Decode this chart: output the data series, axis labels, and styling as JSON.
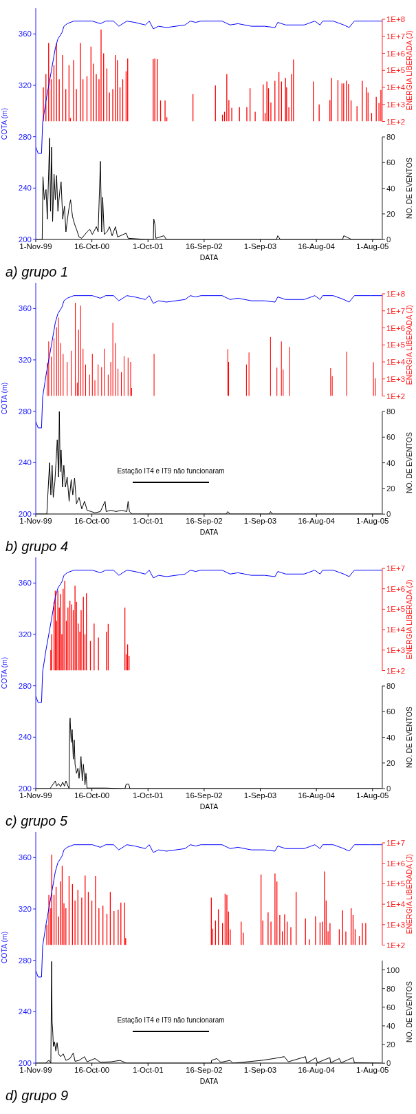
{
  "chart_data": [
    {
      "type": "line",
      "title": "a) grupo 1",
      "xlabel": "DATA",
      "ylabel": "COTA (m)",
      "y2label": "ENERGIA LIBERADA (J)",
      "y3label": "NO. DE EVENTOS",
      "log": "y2",
      "xlim": [
        "1999-11-01",
        "2005-10-01"
      ],
      "xticks": [
        {
          "value": "1999-11-01",
          "label": "1-Nov-99"
        },
        {
          "value": "2000-10-16",
          "label": "16-Oct-00"
        },
        {
          "value": "2001-10-01",
          "label": "1-Oct-01"
        },
        {
          "value": "2002-09-16",
          "label": "16-Sep-02"
        },
        {
          "value": "2003-09-01",
          "label": "1-Sep-03"
        },
        {
          "value": "2004-08-16",
          "label": "16-Aug-04"
        },
        {
          "value": "2005-08-01",
          "label": "1-Aug-05"
        }
      ],
      "ylim": [
        200,
        380
      ],
      "yticks": [
        200,
        240,
        280,
        320,
        360
      ],
      "y2lim": [
        100,
        100000000
      ],
      "y2ticks": [
        {
          "value": 100,
          "label": "1E+2"
        },
        {
          "value": 1000,
          "label": "1E+3"
        },
        {
          "value": 10000,
          "label": "1E+4"
        },
        {
          "value": 100000,
          "label": "1E+5"
        },
        {
          "value": 1000000,
          "label": "1E+6"
        },
        {
          "value": 10000000,
          "label": "1E+7"
        },
        {
          "value": 100000000,
          "label": "1E+8"
        }
      ],
      "y3lim": [
        0,
        80
      ],
      "y3ticks": [
        0,
        20,
        40,
        60,
        80
      ],
      "series": [
        {
          "type": "line",
          "color": "#0000ff",
          "x": [
            "1999-11-01",
            "1999-11-16",
            "1999-12-07",
            "1999-12-14",
            "2000-01-04",
            "2000-02-06",
            "2000-03-02",
            "2000-03-18",
            "2000-04-12",
            "2000-04-25",
            "2000-05-15",
            "2000-06-25",
            "2000-10-19",
            "2000-12-08",
            "2001-01-10",
            "2001-02-28",
            "2001-04-02",
            "2001-05-22",
            "2001-07-10",
            "2001-09-14",
            "2001-10-09",
            "2001-11-03",
            "2001-12-06",
            "2002-01-24",
            "2002-05-20",
            "2002-06-22",
            "2002-07-25",
            "2002-08-27",
            "2003-01-06",
            "2003-02-25",
            "2003-04-15",
            "2003-07-07",
            "2003-09-27",
            "2003-12-02",
            "2003-12-19",
            "2004-02-06",
            "2004-06-01",
            "2004-08-06",
            "2004-09-08",
            "2004-09-24",
            "2004-11-29",
            "2005-02-03",
            "2005-03-08",
            "2005-04-10",
            "2005-07-19",
            "2005-09-30"
          ],
          "values": [
            272,
            267,
            267,
            291,
            308,
            331,
            349,
            356,
            361,
            366,
            368,
            370,
            370,
            368,
            370,
            370,
            366,
            370,
            369,
            367,
            370,
            364,
            366,
            365,
            367,
            370,
            369,
            370,
            370,
            367,
            368,
            366,
            366,
            365,
            369,
            367,
            367,
            370,
            367,
            370,
            370,
            367,
            365,
            370,
            370,
            370
          ]
        },
        {
          "type": "bar",
          "axis": "y2",
          "color": "#ff0000",
          "x": [
            "1999-12-19",
            "2000-01-04",
            "2000-01-21",
            "2000-02-06",
            "2000-02-23",
            "2000-03-10",
            "2000-03-27",
            "2000-04-17",
            "2000-05-07",
            "2000-05-27",
            "2000-06-05",
            "2000-06-25",
            "2000-07-12",
            "2000-08-06",
            "2000-08-22",
            "2000-09-16",
            "2000-10-11",
            "2000-10-27",
            "2000-11-13",
            "2000-11-30",
            "2000-12-13",
            "2000-12-29",
            "2001-01-18",
            "2001-02-03",
            "2001-02-24",
            "2001-03-12",
            "2001-03-25",
            "2001-04-10",
            "2001-04-27",
            "2001-05-18",
            "2001-05-28",
            "2001-11-03",
            "2001-11-13",
            "2001-11-28",
            "2001-12-19",
            "2002-01-16",
            "2002-01-27",
            "2002-07-09",
            "2002-11-26",
            "2003-01-09",
            "2003-01-22",
            "2003-02-05",
            "2003-02-18",
            "2003-03-08",
            "2003-04-25",
            "2003-06-10",
            "2003-06-30",
            "2003-08-01",
            "2003-09-20",
            "2003-10-02",
            "2003-10-13",
            "2003-10-23",
            "2003-11-07",
            "2003-12-02",
            "2003-12-27",
            "2004-01-12",
            "2004-02-06",
            "2004-02-13",
            "2004-02-27",
            "2004-03-15",
            "2004-03-27",
            "2004-07-29",
            "2004-09-03",
            "2004-11-09",
            "2004-11-19",
            "2004-12-29",
            "2005-01-23",
            "2005-02-03",
            "2005-02-20",
            "2005-03-05",
            "2005-03-21",
            "2005-04-27",
            "2005-05-30",
            "2005-06-24",
            "2005-07-05",
            "2005-07-27",
            "2005-08-25",
            "2005-09-11",
            "2005-09-23"
          ],
          "values": [
            10000,
            60000,
            4000000,
            30000,
            200000,
            4000000,
            30000,
            800000,
            8000,
            200000,
            160,
            400000,
            8000,
            4000000,
            30000,
            45000,
            2500000,
            250000,
            60000,
            30000,
            25000000,
            1000000,
            130000,
            5000,
            8000,
            800000,
            400000,
            10000,
            30000,
            90000,
            500000,
            450000,
            500000,
            450000,
            1700,
            1700,
            180,
            4000,
            13000,
            250,
            370,
            60000,
            1800,
            630,
            690,
            690,
            9000,
            370,
            15000,
            310,
            22000,
            9000,
            1300,
            24000,
            80000,
            22000,
            36000,
            10000,
            680,
            60000,
            430000,
            22000,
            1000,
            1800,
            36000,
            27000,
            17000,
            17000,
            25000,
            16000,
            1700,
            800,
            24000,
            10000,
            5000,
            310,
            2800,
            1200,
            7000
          ]
        },
        {
          "type": "line",
          "axis": "y3",
          "color": "#000000",
          "x": [
            "1999-11-01",
            "1999-12-11",
            "1999-12-16",
            "1999-12-24",
            "2000-01-04",
            "2000-01-12",
            "2000-01-21",
            "2000-01-26",
            "2000-02-01",
            "2000-02-08",
            "2000-02-14",
            "2000-02-23",
            "2000-03-02",
            "2000-03-10",
            "2000-03-18",
            "2000-03-31",
            "2000-04-07",
            "2000-04-17",
            "2000-04-28",
            "2000-05-07",
            "2000-05-23",
            "2000-06-05",
            "2000-06-17",
            "2000-06-30",
            "2000-07-12",
            "2000-07-28",
            "2000-08-14",
            "2000-09-16",
            "2000-10-03",
            "2000-10-19",
            "2000-11-13",
            "2000-11-24",
            "2000-12-08",
            "2000-12-16",
            "2000-12-22",
            "2001-01-01",
            "2001-01-18",
            "2001-02-03",
            "2001-02-19",
            "2001-03-12",
            "2001-03-25",
            "2001-05-18",
            "2001-05-30",
            "2001-10-01",
            "2001-11-03",
            "2001-11-06",
            "2001-11-13",
            "2001-11-19",
            "2002-01-08",
            "2002-01-24",
            "2003-12-11",
            "2003-12-19",
            "2004-01-04",
            "2005-01-26",
            "2005-02-03",
            "2005-03-08",
            "2005-03-25",
            "2005-09-23"
          ],
          "values": [
            0,
            0,
            49,
            31,
            39,
            16,
            55,
            79,
            22,
            72,
            14,
            51,
            31,
            50,
            22,
            39,
            45,
            16,
            26,
            6,
            22,
            31,
            18,
            12,
            8,
            2,
            1,
            6,
            8,
            4,
            10,
            6,
            61,
            6,
            33,
            4,
            6,
            10,
            3,
            10,
            2,
            5,
            1,
            0,
            0,
            16,
            12,
            1,
            3,
            0,
            0,
            3,
            0,
            0,
            3,
            1,
            0,
            0
          ]
        }
      ]
    },
    {
      "type": "line",
      "title": "b) grupo 4",
      "xlabel": "DATA",
      "ylabel": "COTA (m)",
      "y2label": "ENERGIA LIBERADA (J)",
      "y3label": "NO. DE EVENTOS",
      "log": "y2",
      "xlim": [
        "1999-11-01",
        "2005-10-01"
      ],
      "xticks": [
        {
          "value": "1999-11-01",
          "label": "1-Nov-99"
        },
        {
          "value": "2000-10-16",
          "label": "16-Oct-00"
        },
        {
          "value": "2001-10-01",
          "label": "1-Oct-01"
        },
        {
          "value": "2002-09-16",
          "label": "16-Sep-02"
        },
        {
          "value": "2003-09-01",
          "label": "1-Sep-03"
        },
        {
          "value": "2004-08-16",
          "label": "16-Aug-04"
        },
        {
          "value": "2005-08-01",
          "label": "1-Aug-05"
        }
      ],
      "ylim": [
        200,
        380
      ],
      "yticks": [
        200,
        240,
        280,
        320,
        360
      ],
      "y2lim": [
        100,
        100000000
      ],
      "y2ticks": [
        {
          "value": 100,
          "label": "1E+2"
        },
        {
          "value": 1000,
          "label": "1E+3"
        },
        {
          "value": 10000,
          "label": "1E+4"
        },
        {
          "value": 100000,
          "label": "1E+5"
        },
        {
          "value": 1000000,
          "label": "1E+6"
        },
        {
          "value": 10000000,
          "label": "1E+7"
        },
        {
          "value": 100000000,
          "label": "1E+8"
        }
      ],
      "y3lim": [
        0,
        80
      ],
      "y3ticks": [
        0,
        20,
        40,
        60,
        80
      ],
      "annotations": [
        "Estação IT4 e IT9 não funcionaram"
      ],
      "series": [
        {
          "type": "line",
          "color": "#0000ff",
          "x": [
            "1999-11-01",
            "1999-11-16",
            "1999-12-07",
            "1999-12-14",
            "2000-01-04",
            "2000-02-06",
            "2000-03-02",
            "2000-03-18",
            "2000-04-12",
            "2000-04-25",
            "2000-05-15",
            "2000-06-25",
            "2000-10-19",
            "2000-12-08",
            "2001-01-10",
            "2001-02-28",
            "2001-04-02",
            "2001-05-22",
            "2001-07-10",
            "2001-09-14",
            "2001-10-09",
            "2001-11-03",
            "2001-12-06",
            "2002-01-24",
            "2002-05-20",
            "2002-06-22",
            "2002-07-25",
            "2002-08-27",
            "2003-01-06",
            "2003-02-25",
            "2003-04-15",
            "2003-07-07",
            "2003-09-27",
            "2003-12-02",
            "2003-12-19",
            "2004-02-06",
            "2004-06-01",
            "2004-08-06",
            "2004-09-08",
            "2004-09-24",
            "2004-11-29",
            "2005-02-03",
            "2005-03-08",
            "2005-04-10",
            "2005-07-19",
            "2005-09-30"
          ],
          "values": [
            272,
            267,
            267,
            291,
            308,
            331,
            349,
            356,
            361,
            366,
            368,
            370,
            370,
            368,
            370,
            370,
            366,
            370,
            369,
            367,
            370,
            364,
            366,
            365,
            367,
            370,
            369,
            370,
            370,
            367,
            368,
            366,
            366,
            365,
            369,
            367,
            367,
            370,
            367,
            370,
            370,
            367,
            365,
            370,
            370,
            370
          ]
        },
        {
          "type": "bar",
          "axis": "y2",
          "color": "#ff0000",
          "x": [
            "2000-01-12",
            "2000-01-21",
            "2000-02-06",
            "2000-02-23",
            "2000-03-10",
            "2000-03-22",
            "2000-04-04",
            "2000-04-20",
            "2000-05-15",
            "2000-06-09",
            "2000-07-05",
            "2000-07-17",
            "2000-07-25",
            "2000-08-07",
            "2000-08-22",
            "2000-09-07",
            "2000-10-02",
            "2000-10-19",
            "2000-11-04",
            "2000-11-24",
            "2000-12-16",
            "2001-01-01",
            "2001-01-26",
            "2001-02-11",
            "2001-02-24",
            "2001-03-12",
            "2001-03-28",
            "2001-04-18",
            "2001-05-05",
            "2001-05-30",
            "2001-06-15",
            "2001-06-21",
            "2001-11-08",
            "2003-02-11",
            "2003-02-16",
            "2003-06-07",
            "2003-06-23",
            "2003-11-04",
            "2003-12-14",
            "2004-01-11",
            "2004-01-22",
            "2004-03-03",
            "2004-11-13",
            "2004-11-23",
            "2005-02-21",
            "2005-08-07",
            "2005-08-19"
          ],
          "values": [
            9000,
            160000,
            20000,
            250000,
            1100000,
            4000000,
            130000,
            30000,
            10000,
            45000,
            30000000,
            600,
            800000,
            20000000,
            60000,
            7000,
            1800,
            30000,
            850,
            7000,
            5000,
            60000,
            1800,
            10000,
            2000000,
            130000,
            4000,
            2500,
            22000,
            18000,
            10000,
            290,
            30000,
            57000,
            10000,
            7000,
            36000,
            290000,
            4600,
            160000,
            3600,
            76000,
            4300,
            1500,
            40000,
            9500,
            1100
          ]
        },
        {
          "type": "line",
          "axis": "y3",
          "color": "#000000",
          "x": [
            "1999-11-01",
            "2000-01-09",
            "2000-01-17",
            "2000-01-26",
            "2000-02-03",
            "2000-02-11",
            "2000-02-18",
            "2000-02-28",
            "2000-03-07",
            "2000-03-14",
            "2000-03-22",
            "2000-03-27",
            "2000-04-01",
            "2000-04-07",
            "2000-04-16",
            "2000-04-24",
            "2000-05-04",
            "2000-05-15",
            "2000-05-27",
            "2000-06-09",
            "2000-06-19",
            "2000-06-30",
            "2000-07-12",
            "2000-07-28",
            "2000-08-14",
            "2000-08-31",
            "2000-09-16",
            "2000-10-11",
            "2000-11-04",
            "2000-12-08",
            "2001-01-06",
            "2001-01-13",
            "2001-02-11",
            "2001-03-16",
            "2001-04-18",
            "2001-05-22",
            "2001-05-30",
            "2001-06-07",
            "2001-06-24",
            "2003-01-31",
            "2003-02-11",
            "2003-02-25",
            "2003-10-28",
            "2003-11-04",
            "2003-11-16",
            "2005-09-23"
          ],
          "values": [
            0,
            0,
            19,
            40,
            15,
            38,
            13,
            25,
            42,
            58,
            29,
            80,
            33,
            50,
            21,
            38,
            21,
            29,
            10,
            27,
            15,
            28,
            8,
            13,
            4,
            10,
            3,
            2,
            1,
            2,
            10,
            2,
            3,
            2,
            3,
            2,
            10,
            2,
            0,
            0,
            2,
            0,
            0,
            2,
            0,
            0
          ]
        }
      ]
    },
    {
      "type": "line",
      "title": "c) grupo 5",
      "xlabel": "DATA",
      "ylabel": "COTA (m)",
      "y2label": "ENERGIA LIBERADA (J)",
      "y3label": "NO. DE EVENTOS",
      "log": "y2",
      "xlim": [
        "1999-11-01",
        "2005-10-01"
      ],
      "xticks": [
        {
          "value": "1999-11-01",
          "label": "1-Nov-99"
        },
        {
          "value": "2000-10-16",
          "label": "16-Oct-00"
        },
        {
          "value": "2001-10-01",
          "label": "1-Oct-01"
        },
        {
          "value": "2002-09-16",
          "label": "16-Sep-02"
        },
        {
          "value": "2003-09-01",
          "label": "1-Sep-03"
        },
        {
          "value": "2004-08-16",
          "label": "16-Aug-04"
        },
        {
          "value": "2005-08-01",
          "label": "1-Aug-05"
        }
      ],
      "ylim": [
        200,
        380
      ],
      "yticks": [
        200,
        240,
        280,
        320,
        360
      ],
      "y2lim": [
        100,
        10000000
      ],
      "y2ticks": [
        {
          "value": 100,
          "label": "1E+2"
        },
        {
          "value": 1000,
          "label": "1E+3"
        },
        {
          "value": 10000,
          "label": "1E+4"
        },
        {
          "value": 100000,
          "label": "1E+5"
        },
        {
          "value": 1000000,
          "label": "1E+6"
        },
        {
          "value": 10000000,
          "label": "1E+7"
        }
      ],
      "y3lim": [
        0,
        80
      ],
      "y3ticks": [
        0,
        20,
        40,
        60,
        80
      ],
      "series": [
        {
          "type": "line",
          "color": "#0000ff",
          "x": [
            "1999-11-01",
            "1999-11-16",
            "1999-12-07",
            "1999-12-14",
            "2000-01-04",
            "2000-02-06",
            "2000-03-02",
            "2000-03-18",
            "2000-04-12",
            "2000-04-25",
            "2000-05-15",
            "2000-06-25",
            "2000-10-19",
            "2000-12-08",
            "2001-01-10",
            "2001-02-28",
            "2001-04-02",
            "2001-05-22",
            "2001-07-10",
            "2001-09-14",
            "2001-10-09",
            "2001-11-03",
            "2001-12-06",
            "2002-01-24",
            "2002-05-20",
            "2002-06-22",
            "2002-07-25",
            "2002-08-27",
            "2003-01-06",
            "2003-02-25",
            "2003-04-15",
            "2003-07-07",
            "2003-09-27",
            "2003-12-02",
            "2003-12-19",
            "2004-02-06",
            "2004-06-01",
            "2004-08-06",
            "2004-09-08",
            "2004-09-24",
            "2004-11-29",
            "2005-02-03",
            "2005-03-08",
            "2005-04-10",
            "2005-07-19",
            "2005-09-30"
          ],
          "values": [
            272,
            267,
            267,
            291,
            308,
            331,
            349,
            356,
            361,
            366,
            368,
            370,
            370,
            368,
            370,
            370,
            366,
            370,
            369,
            367,
            370,
            364,
            366,
            365,
            367,
            370,
            369,
            370,
            370,
            367,
            368,
            366,
            366,
            365,
            369,
            367,
            367,
            370,
            367,
            370,
            370,
            367,
            365,
            370,
            370,
            370
          ]
        },
        {
          "type": "bar",
          "axis": "y2",
          "color": "#ff0000",
          "x": [
            "2000-02-03",
            "2000-02-09",
            "2000-02-23",
            "2000-03-02",
            "2000-03-10",
            "2000-03-18",
            "2000-03-27",
            "2000-04-04",
            "2000-04-12",
            "2000-04-20",
            "2000-04-30",
            "2000-05-10",
            "2000-05-20",
            "2000-06-01",
            "2000-06-12",
            "2000-06-22",
            "2000-07-03",
            "2000-07-12",
            "2000-07-23",
            "2000-08-02",
            "2000-08-10",
            "2000-08-24",
            "2000-09-03",
            "2000-09-12",
            "2000-10-07",
            "2000-10-30",
            "2000-11-26",
            "2001-01-15",
            "2001-01-26",
            "2001-05-10",
            "2001-05-18",
            "2001-05-27",
            "2001-06-05"
          ],
          "values": [
            1000,
            6000,
            230000,
            800000,
            27000,
            800000,
            120000,
            560000,
            6000,
            1000000,
            2500000,
            27000,
            120000,
            260000,
            170000,
            90000,
            1400000,
            230000,
            20000,
            8000,
            90000,
            400000,
            6000,
            600000,
            2800,
            20000,
            4100,
            8000,
            19000,
            120000,
            620,
            1900,
            530
          ]
        },
        {
          "type": "line",
          "axis": "y3",
          "color": "#000000",
          "x": [
            "1999-11-01",
            "2000-01-29",
            "2000-02-03",
            "2000-03-02",
            "2000-03-10",
            "2000-03-22",
            "2000-04-04",
            "2000-04-17",
            "2000-04-28",
            "2000-05-07",
            "2000-05-20",
            "2000-05-27",
            "2000-05-30",
            "2000-06-02",
            "2000-06-09",
            "2000-06-15",
            "2000-06-22",
            "2000-06-28",
            "2000-07-03",
            "2000-07-12",
            "2000-07-21",
            "2000-07-28",
            "2000-08-09",
            "2000-08-17",
            "2000-08-24",
            "2000-09-03",
            "2000-09-09",
            "2000-09-16",
            "2001-01-10",
            "2001-05-10",
            "2001-05-18",
            "2001-06-03",
            "2001-06-10",
            "2005-09-23"
          ],
          "values": [
            0,
            0,
            1,
            6,
            2,
            4,
            1.5,
            5,
            2,
            6,
            2,
            0,
            48,
            55,
            36,
            46,
            23,
            38,
            19,
            12,
            16,
            8,
            25,
            6,
            19,
            3,
            12,
            0.5,
            0.5,
            0,
            3.6,
            3.6,
            0,
            0
          ]
        }
      ]
    },
    {
      "type": "line",
      "title": "d) grupo 9",
      "xlabel": "DATA",
      "ylabel": "COTA (m)",
      "y2label": "ENERGIA LIBERADA (J)",
      "y3label": "NO. DE EVENTOS",
      "log": "y2",
      "xlim": [
        "1999-11-01",
        "2005-10-01"
      ],
      "xticks": [
        {
          "value": "1999-11-01",
          "label": "1-Nov-99"
        },
        {
          "value": "2000-10-16",
          "label": "16-Oct-00"
        },
        {
          "value": "2001-10-01",
          "label": "1-Oct-01"
        },
        {
          "value": "2002-09-16",
          "label": "16-Sep-02"
        },
        {
          "value": "2003-09-01",
          "label": "1-Sep-03"
        },
        {
          "value": "2004-08-16",
          "label": "16-Aug-04"
        },
        {
          "value": "2005-08-01",
          "label": "1-Aug-05"
        }
      ],
      "ylim": [
        200,
        380
      ],
      "yticks": [
        200,
        240,
        280,
        320,
        360
      ],
      "y2lim": [
        100,
        10000000
      ],
      "y2ticks": [
        {
          "value": 100,
          "label": "1E+2"
        },
        {
          "value": 1000,
          "label": "1E+3"
        },
        {
          "value": 10000,
          "label": "1E+4"
        },
        {
          "value": 100000,
          "label": "1E+5"
        },
        {
          "value": 1000000,
          "label": "1E+6"
        },
        {
          "value": 10000000,
          "label": "1E+7"
        }
      ],
      "y3lim": [
        0,
        110
      ],
      "y3ticks": [
        0,
        20,
        40,
        60,
        80,
        100
      ],
      "annotations": [
        "Estação IT4 e IT9 não funcionaram"
      ],
      "series": [
        {
          "type": "line",
          "color": "#0000ff",
          "x": [
            "1999-11-01",
            "1999-11-16",
            "1999-12-07",
            "1999-12-14",
            "2000-01-04",
            "2000-02-06",
            "2000-03-02",
            "2000-03-18",
            "2000-04-12",
            "2000-04-25",
            "2000-05-15",
            "2000-06-25",
            "2000-10-19",
            "2000-12-08",
            "2001-01-10",
            "2001-02-28",
            "2001-04-02",
            "2001-05-22",
            "2001-07-10",
            "2001-09-14",
            "2001-10-09",
            "2001-11-03",
            "2001-12-06",
            "2002-01-24",
            "2002-05-20",
            "2002-06-22",
            "2002-07-25",
            "2002-08-27",
            "2003-01-06",
            "2003-02-25",
            "2003-04-15",
            "2003-07-07",
            "2003-09-27",
            "2003-12-02",
            "2003-12-19",
            "2004-02-06",
            "2004-06-01",
            "2004-08-06",
            "2004-09-08",
            "2004-09-24",
            "2004-11-29",
            "2005-02-03",
            "2005-03-08",
            "2005-04-10",
            "2005-07-19",
            "2005-09-30"
          ],
          "values": [
            272,
            267,
            267,
            291,
            308,
            331,
            349,
            356,
            361,
            366,
            368,
            370,
            370,
            368,
            370,
            370,
            366,
            370,
            369,
            367,
            370,
            364,
            366,
            365,
            367,
            370,
            369,
            370,
            370,
            367,
            368,
            366,
            366,
            365,
            369,
            367,
            367,
            370,
            367,
            370,
            370,
            367,
            365,
            370,
            370,
            370
          ]
        },
        {
          "type": "bar",
          "axis": "y2",
          "color": "#ff0000",
          "x": [
            "2000-01-09",
            "2000-01-22",
            "2000-02-03",
            "2000-02-09",
            "2000-02-23",
            "2000-03-07",
            "2000-03-23",
            "2000-04-04",
            "2000-04-14",
            "2000-04-25",
            "2000-05-07",
            "2000-05-27",
            "2000-06-17",
            "2000-07-03",
            "2000-07-21",
            "2000-08-14",
            "2000-09-04",
            "2000-09-24",
            "2000-10-16",
            "2000-11-08",
            "2000-11-29",
            "2000-12-24",
            "2001-01-18",
            "2001-02-08",
            "2001-03-03",
            "2001-03-29",
            "2001-04-15",
            "2001-05-08",
            "2001-05-15",
            "2002-10-31",
            "2002-11-09",
            "2002-11-26",
            "2002-12-14",
            "2003-01-09",
            "2003-01-25",
            "2003-02-05",
            "2003-02-15",
            "2003-02-26",
            "2003-05-05",
            "2003-05-18",
            "2003-09-06",
            "2003-09-17",
            "2003-10-20",
            "2003-11-07",
            "2003-12-02",
            "2003-12-14",
            "2004-01-01",
            "2004-01-17",
            "2004-01-31",
            "2004-02-16",
            "2004-03-10",
            "2004-04-12",
            "2004-06-09",
            "2004-07-04",
            "2004-08-11",
            "2004-09-08",
            "2004-09-24",
            "2004-10-06",
            "2004-10-16",
            "2004-10-28",
            "2004-11-09",
            "2005-01-06",
            "2005-01-27",
            "2005-02-16",
            "2005-03-21",
            "2005-04-02",
            "2005-04-15",
            "2005-05-11",
            "2005-05-30",
            "2005-06-20"
          ],
          "values": [
            1000,
            28000,
            6300,
            2700000,
            28000,
            70000,
            2500,
            130000,
            740000,
            11000,
            6300,
            240000,
            96000,
            15000,
            50000,
            21000,
            250000,
            40000,
            15000,
            240000,
            6300,
            8500,
            3400,
            40000,
            4600,
            5400,
            12000,
            12000,
            220,
            21000,
            630,
            1600,
            5600,
            1200,
            33000,
            28000,
            4400,
            580,
            1400,
            400,
            280000,
            1600,
            4000,
            1400,
            320000,
            130000,
            2900,
            470,
            3200,
            1400,
            750,
            40000,
            2000,
            190,
            2600,
            1300,
            1400,
            400000,
            15000,
            470,
            1200,
            590,
            5000,
            460,
            6300,
            2900,
            590,
            280,
            1200,
            1200
          ]
        },
        {
          "type": "line",
          "axis": "y3",
          "color": "#000000",
          "x": [
            "1999-11-01",
            "2000-01-04",
            "2000-01-12",
            "2000-01-24",
            "2000-02-03",
            "2000-02-08",
            "2000-02-11",
            "2000-02-14",
            "2000-02-19",
            "2000-02-26",
            "2000-03-05",
            "2000-03-13",
            "2000-03-22",
            "2000-04-04",
            "2000-04-20",
            "2000-05-07",
            "2000-06-01",
            "2000-06-22",
            "2000-07-03",
            "2000-07-28",
            "2000-08-31",
            "2000-09-16",
            "2000-11-04",
            "2000-12-08",
            "2001-02-11",
            "2001-04-10",
            "2001-05-13",
            "2001-05-22",
            "2002-10-31",
            "2002-11-01",
            "2002-12-04",
            "2002-12-29",
            "2003-02-25",
            "2003-03-14",
            "2003-09-08",
            "2003-11-25",
            "2004-01-29",
            "2004-02-23",
            "2004-06-09",
            "2004-06-17",
            "2004-08-14",
            "2004-08-22",
            "2004-11-08",
            "2004-11-13",
            "2005-01-06",
            "2005-01-18",
            "2005-04-02",
            "2005-04-10",
            "2005-09-23"
          ],
          "values": [
            0,
            0,
            2,
            3,
            0,
            109,
            44,
            37,
            18,
            23,
            13,
            22,
            10,
            7,
            10,
            3,
            5,
            11,
            2,
            3,
            7,
            1.5,
            5,
            1,
            1.5,
            3,
            0.5,
            0,
            0,
            3,
            5,
            1,
            3,
            0,
            3,
            5,
            7,
            1.5,
            7,
            0,
            6,
            0.5,
            6,
            0.5,
            5,
            0.5,
            6,
            0.5,
            0
          ]
        }
      ]
    }
  ]
}
